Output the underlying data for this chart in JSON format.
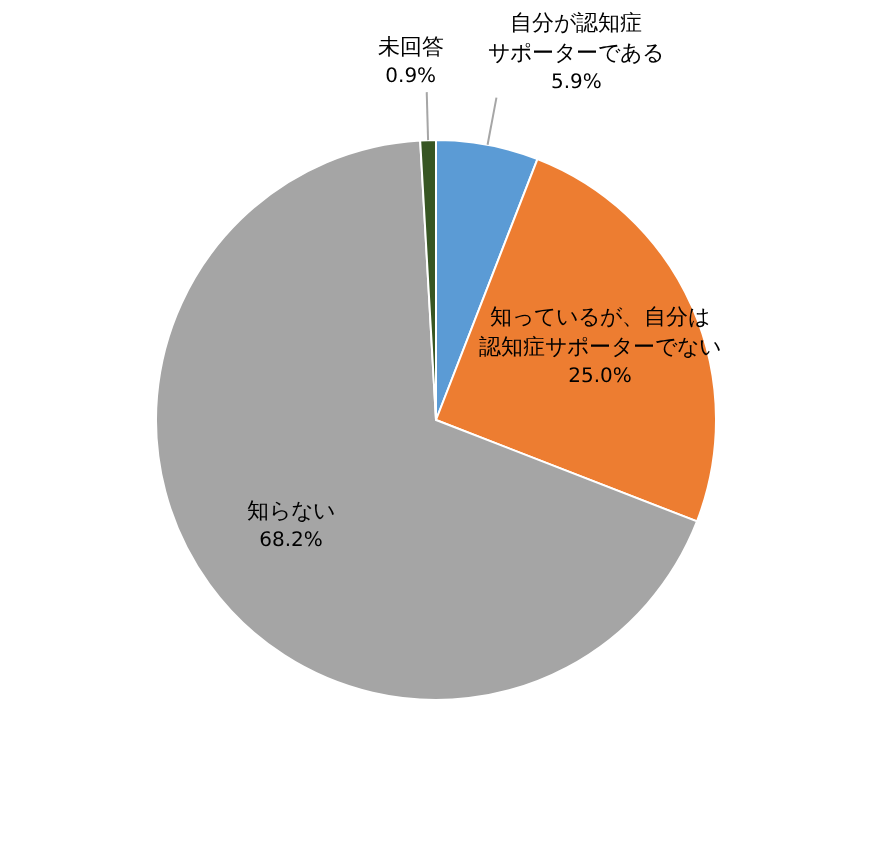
{
  "chart_data": {
    "type": "pie",
    "categories": [
      "自分が認知症サポーターである",
      "知っているが、自分は認知症サポーターでない",
      "知らない",
      "未回答"
    ],
    "values": [
      5.9,
      25.0,
      68.2,
      0.9
    ],
    "value_labels": [
      "5.9%",
      "25.0%",
      "68.2%",
      "0.9%"
    ],
    "colors": [
      "#5b9bd5",
      "#ed7d31",
      "#a5a5a5",
      "#375623"
    ],
    "legend": false
  }
}
